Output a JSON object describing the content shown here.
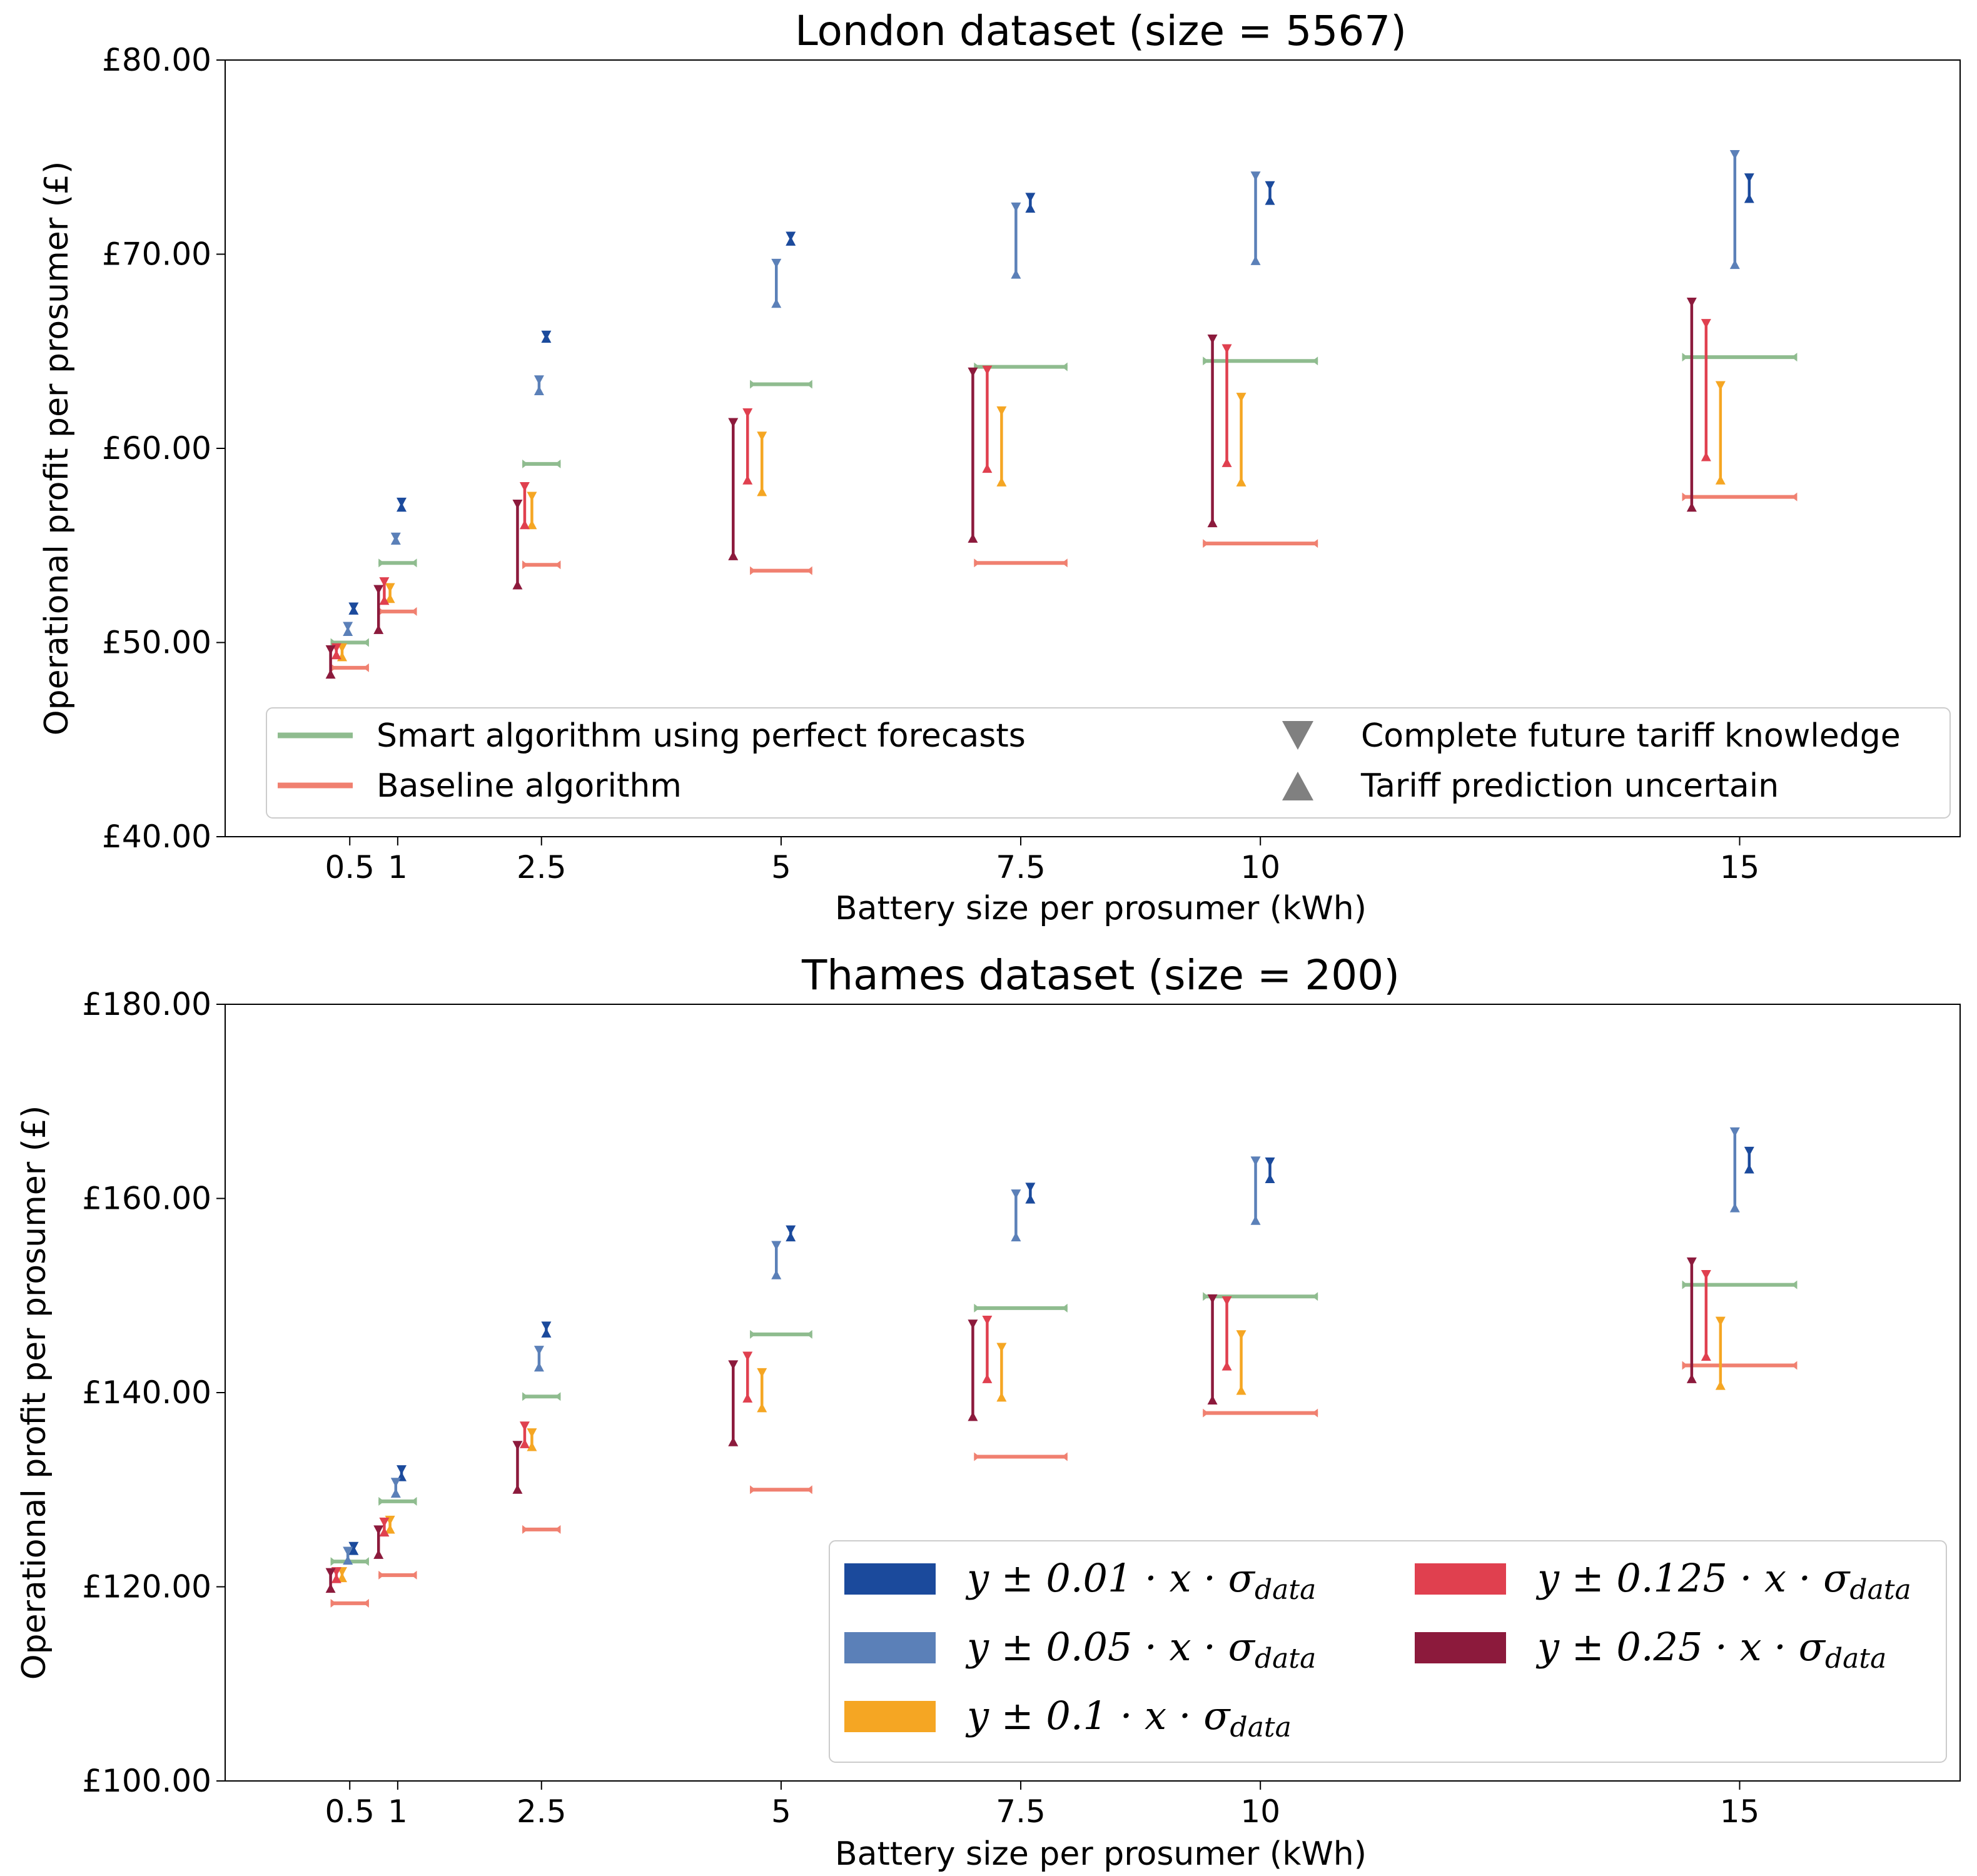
{
  "chart_data": [
    {
      "type": "errorbar",
      "title": "London dataset (size = 5567)",
      "xlabel": "Battery size per prosumer (kWh)",
      "ylabel": "Operational profit per prosumer (£)",
      "xlim": [
        -0.8,
        17.3
      ],
      "ylim": [
        40,
        80
      ],
      "xticks": [
        0.5,
        1,
        2.5,
        5,
        7.5,
        10,
        15
      ],
      "xtick_labels": [
        "0.5",
        "1",
        "2.5",
        "5",
        "7.5",
        "10",
        "15"
      ],
      "yticks": [
        40,
        50,
        60,
        70,
        80
      ],
      "ytick_labels": [
        "£40.00",
        "£50.00",
        "£60.00",
        "£70.00",
        "£80.00"
      ],
      "x": [
        0.5,
        1,
        2.5,
        5,
        7.5,
        10,
        15
      ],
      "smart_perfect_forecast": [
        50.0,
        54.1,
        59.2,
        63.3,
        64.2,
        64.5,
        64.7
      ],
      "baseline": [
        48.7,
        51.6,
        54.0,
        53.7,
        54.1,
        55.1,
        57.5
      ],
      "bands": [
        {
          "name": "y ± 0.01 · x · σ_data",
          "color": "#1b4a9c",
          "offset": 0.1,
          "complete_knowledge": [
            51.9,
            57.3,
            65.9,
            71.0,
            73.0,
            73.6,
            74.0
          ],
          "uncertain_prediction": [
            51.6,
            56.9,
            65.6,
            70.6,
            72.3,
            72.7,
            72.8
          ]
        },
        {
          "name": "y ± 0.05 · x · σ_data",
          "color": "#5b80b8",
          "offset": -0.05,
          "complete_knowledge": [
            50.9,
            55.5,
            63.6,
            69.6,
            72.5,
            74.1,
            75.2
          ],
          "uncertain_prediction": [
            50.5,
            55.2,
            62.9,
            67.4,
            68.9,
            69.6,
            69.4
          ]
        },
        {
          "name": "y ± 0.1 · x · σ_data",
          "color": "#f5a623",
          "offset": -0.2,
          "complete_knowledge": [
            49.8,
            52.9,
            57.6,
            60.7,
            62.0,
            62.7,
            63.3
          ],
          "uncertain_prediction": [
            49.2,
            52.2,
            56.0,
            57.7,
            58.2,
            58.2,
            58.3
          ]
        },
        {
          "name": "y ± 0.125 · x · σ_data",
          "color": "#e0404f",
          "offset": -0.35,
          "complete_knowledge": [
            49.8,
            53.2,
            58.1,
            61.9,
            64.1,
            65.2,
            66.5
          ],
          "uncertain_prediction": [
            49.3,
            52.1,
            56.0,
            58.3,
            58.9,
            59.2,
            59.5
          ]
        },
        {
          "name": "y ± 0.25 · x · σ_data",
          "color": "#8c1a3c",
          "offset": -0.5,
          "complete_knowledge": [
            49.7,
            52.8,
            57.2,
            61.4,
            64.0,
            65.7,
            67.6
          ],
          "uncertain_prediction": [
            48.3,
            50.6,
            52.9,
            54.4,
            55.3,
            56.1,
            56.9
          ]
        }
      ],
      "legend": {
        "placement": "lower-center",
        "lines": [
          {
            "label": "Smart algorithm using perfect forecasts",
            "color": "#8fbc8f"
          },
          {
            "label": "Baseline algorithm",
            "color": "#f08070"
          }
        ],
        "markers": [
          {
            "label": "Complete future tariff knowledge",
            "marker": "triangle-down",
            "color": "#808080"
          },
          {
            "label": "Tariff prediction uncertain",
            "marker": "triangle-up",
            "color": "#808080"
          }
        ]
      }
    },
    {
      "type": "errorbar",
      "title": "Thames dataset (size = 200)",
      "xlabel": "Battery size per prosumer (kWh)",
      "ylabel": "Operational profit per prosumer (£)",
      "xlim": [
        -0.8,
        17.3
      ],
      "ylim": [
        100,
        180
      ],
      "xticks": [
        0.5,
        1,
        2.5,
        5,
        7.5,
        10,
        15
      ],
      "xtick_labels": [
        "0.5",
        "1",
        "2.5",
        "5",
        "7.5",
        "10",
        "15"
      ],
      "yticks": [
        100,
        120,
        140,
        160,
        180
      ],
      "ytick_labels": [
        "£100.00",
        "£120.00",
        "£140.00",
        "£160.00",
        "£180.00"
      ],
      "x": [
        0.5,
        1,
        2.5,
        5,
        7.5,
        10,
        15
      ],
      "smart_perfect_forecast": [
        122.6,
        128.8,
        139.6,
        146.0,
        148.7,
        149.9,
        151.1
      ],
      "baseline": [
        118.3,
        121.2,
        125.9,
        130.0,
        133.4,
        137.9,
        142.8
      ],
      "bands": [
        {
          "name": "y ± 0.01 · x · σ_data",
          "color": "#1b4a9c",
          "offset": 0.1,
          "complete_knowledge": [
            124.3,
            132.2,
            147.0,
            156.9,
            161.3,
            163.9,
            165.0
          ],
          "uncertain_prediction": [
            123.6,
            131.2,
            146.0,
            155.9,
            159.8,
            161.9,
            162.9
          ]
        },
        {
          "name": "y ± 0.05 · x · σ_data",
          "color": "#5b80b8",
          "offset": -0.05,
          "complete_knowledge": [
            123.8,
            130.9,
            144.5,
            155.3,
            160.6,
            164.0,
            167.0
          ],
          "uncertain_prediction": [
            122.6,
            129.5,
            142.5,
            152.0,
            155.9,
            157.6,
            158.9
          ]
        },
        {
          "name": "y ± 0.1 · x · σ_data",
          "color": "#f5a623",
          "offset": -0.2,
          "complete_knowledge": [
            121.7,
            127.0,
            136.0,
            142.2,
            144.8,
            146.1,
            147.5
          ],
          "uncertain_prediction": [
            120.8,
            125.8,
            134.3,
            138.3,
            139.4,
            140.1,
            140.6
          ]
        },
        {
          "name": "y ± 0.125 · x · σ_data",
          "color": "#e0404f",
          "offset": -0.35,
          "complete_knowledge": [
            121.7,
            126.8,
            136.7,
            143.9,
            147.6,
            149.6,
            152.3
          ],
          "uncertain_prediction": [
            120.7,
            125.5,
            134.6,
            139.3,
            141.3,
            142.6,
            143.6
          ]
        },
        {
          "name": "y ± 0.25 · x · σ_data",
          "color": "#8c1a3c",
          "offset": -0.5,
          "complete_knowledge": [
            121.6,
            126.0,
            134.7,
            143.0,
            147.2,
            149.8,
            153.6
          ],
          "uncertain_prediction": [
            119.7,
            123.2,
            129.9,
            134.8,
            137.4,
            139.1,
            141.3
          ]
        }
      ],
      "legend": {
        "placement": "lower-right",
        "entries": [
          {
            "prefix": "y ± 0.01 · x · σ",
            "sub": "data",
            "color": "#1b4a9c"
          },
          {
            "prefix": "y ± 0.05 · x · σ",
            "sub": "data",
            "color": "#5b80b8"
          },
          {
            "prefix": "y ± 0.1 · x · σ",
            "sub": "data",
            "color": "#f5a623"
          },
          {
            "prefix": "y ± 0.125 · x · σ",
            "sub": "data",
            "color": "#e0404f"
          },
          {
            "prefix": "y ± 0.25 · x · σ",
            "sub": "data",
            "color": "#8c1a3c"
          }
        ]
      }
    }
  ]
}
